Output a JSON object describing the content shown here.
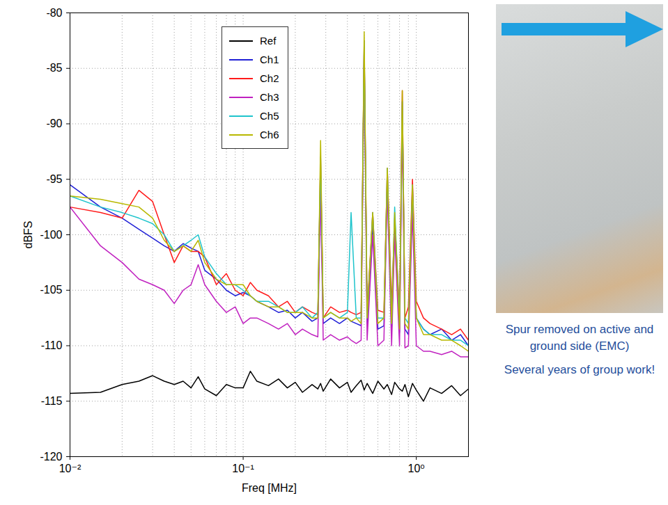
{
  "chart_data": {
    "type": "line",
    "x": [
      0.01,
      0.015,
      0.02,
      0.025,
      0.03,
      0.035,
      0.04,
      0.045,
      0.05,
      0.055,
      0.06,
      0.07,
      0.08,
      0.09,
      0.1,
      0.11,
      0.12,
      0.14,
      0.16,
      0.18,
      0.2,
      0.22,
      0.25,
      0.27,
      0.28,
      0.29,
      0.32,
      0.36,
      0.4,
      0.42,
      0.45,
      0.48,
      0.5,
      0.52,
      0.56,
      0.6,
      0.65,
      0.68,
      0.72,
      0.75,
      0.8,
      0.83,
      0.86,
      0.9,
      0.95,
      1.0,
      1.1,
      1.2,
      1.4,
      1.6,
      1.8,
      2.0
    ],
    "series": [
      {
        "name": "Ref",
        "color": "#000000",
        "values": [
          -114.3,
          -114.2,
          -113.5,
          -113.2,
          -112.7,
          -113.2,
          -113.5,
          -113.2,
          -113.8,
          -112.8,
          -113.9,
          -114.5,
          -113.5,
          -113.8,
          -113.8,
          -112.3,
          -113.2,
          -113.6,
          -113.0,
          -113.8,
          -113.3,
          -114.2,
          -113.5,
          -113.9,
          -113.4,
          -114.1,
          -113.0,
          -113.8,
          -113.3,
          -114.2,
          -113.6,
          -113.1,
          -114.0,
          -113.4,
          -114.3,
          -113.2,
          -113.9,
          -113.5,
          -114.4,
          -113.3,
          -113.9,
          -114.1,
          -113.5,
          -114.6,
          -113.4,
          -114.0,
          -115.0,
          -113.8,
          -114.3,
          -113.6,
          -114.5,
          -113.9
        ]
      },
      {
        "name": "Ch1",
        "color": "#1f1fd6",
        "values": [
          -95.5,
          -97.5,
          -98.5,
          -99.5,
          -100.3,
          -101,
          -101.5,
          -100.8,
          -101.2,
          -101.5,
          -103.2,
          -104,
          -105,
          -105.5,
          -105.2,
          -105.5,
          -106,
          -106.5,
          -107,
          -106.8,
          -107.5,
          -107,
          -107.8,
          -107.5,
          -95,
          -108,
          -107.5,
          -108,
          -107.5,
          -107.8,
          -108,
          -108.2,
          -83,
          -108,
          -99,
          -108.5,
          -108.2,
          -95,
          -108.5,
          -99,
          -108.8,
          -88,
          -108.5,
          -109,
          -96,
          -107.5,
          -108.5,
          -109,
          -108.5,
          -109.5,
          -109,
          -110
        ]
      },
      {
        "name": "Ch2",
        "color": "#ff1a1a",
        "values": [
          -97.5,
          -98,
          -98.5,
          -96,
          -97,
          -100,
          -102.5,
          -101,
          -101.5,
          -101.5,
          -102,
          -104.5,
          -103.5,
          -105,
          -105.5,
          -104.3,
          -105,
          -105.5,
          -106.5,
          -106,
          -107,
          -106.5,
          -107,
          -107.2,
          -93,
          -107.5,
          -106.5,
          -107,
          -106.8,
          -107,
          -107.2,
          -107,
          -82.5,
          -107,
          -98,
          -106.8,
          -107,
          -94,
          -106.5,
          -98.5,
          -107,
          -87,
          -107.5,
          -106.5,
          -95,
          -106,
          -107.5,
          -108,
          -108.5,
          -109,
          -108.5,
          -109.5
        ]
      },
      {
        "name": "Ch3",
        "color": "#c021c0",
        "values": [
          -97.5,
          -101,
          -102.5,
          -104,
          -104.5,
          -105,
          -106.2,
          -105,
          -104.5,
          -102.7,
          -104.5,
          -106,
          -107,
          -106.5,
          -108,
          -107.5,
          -107.5,
          -108,
          -108.5,
          -108,
          -109,
          -108.5,
          -109,
          -109.2,
          -96,
          -109.5,
          -109,
          -109.5,
          -109.2,
          -109.5,
          -109.8,
          -109.5,
          -84,
          -109.5,
          -100,
          -110,
          -109.5,
          -96,
          -110,
          -100,
          -110,
          -90,
          -110.2,
          -110,
          -98,
          -110,
          -110.5,
          -110.5,
          -110.8,
          -110.5,
          -111,
          -111
        ]
      },
      {
        "name": "Ch5",
        "color": "#1fc4cc",
        "values": [
          -96.5,
          -97.5,
          -98,
          -98.5,
          -99,
          -100,
          -101.5,
          -101,
          -100.5,
          -100,
          -102,
          -103.5,
          -104.5,
          -104.5,
          -105,
          -105.5,
          -106,
          -106,
          -106.5,
          -107,
          -107,
          -106.5,
          -107.5,
          -107,
          -93,
          -107.5,
          -107,
          -107.5,
          -107,
          -98,
          -107.5,
          -107.5,
          -82.5,
          -107.5,
          -98,
          -107.5,
          -107.5,
          -94,
          -108,
          -97.5,
          -108,
          -88,
          -107.5,
          -108,
          -95.5,
          -107.5,
          -108.5,
          -109,
          -109,
          -109.5,
          -109.5,
          -110
        ]
      },
      {
        "name": "Ch6",
        "color": "#b8b800",
        "values": [
          -96.5,
          -96.8,
          -97.2,
          -97.5,
          -98.5,
          -100.5,
          -101.5,
          -101,
          -101.5,
          -100.5,
          -102.5,
          -104,
          -104.5,
          -104.5,
          -104.5,
          -105.5,
          -106,
          -106.5,
          -106.5,
          -107,
          -107,
          -107,
          -107.5,
          -107.5,
          -91.5,
          -107.5,
          -107,
          -107.5,
          -107.5,
          -107.8,
          -107.5,
          -108,
          -81.7,
          -107.5,
          -98,
          -108,
          -107.5,
          -94,
          -108,
          -98,
          -108.5,
          -87,
          -108,
          -108.5,
          -95.5,
          -107.5,
          -109,
          -109,
          -109.5,
          -109.5,
          -110,
          -110.5
        ]
      }
    ],
    "xlim": [
      0.01,
      2
    ],
    "ylim": [
      -120,
      -80
    ],
    "xticks": [
      {
        "value": 0.01,
        "label": "10⁻²"
      },
      {
        "value": 0.1,
        "label": "10⁻¹"
      },
      {
        "value": 1,
        "label": "10⁰"
      }
    ],
    "yticks": [
      -120,
      -115,
      -110,
      -105,
      -100,
      -95,
      -90,
      -85,
      -80
    ],
    "xlabel": "Freq [MHz]",
    "ylabel": "dBFS",
    "log": "x",
    "grid": true,
    "legend": "top",
    "annotations": [
      "Spur removed on active and ground side (EMC)",
      "Several years of group work!"
    ]
  }
}
